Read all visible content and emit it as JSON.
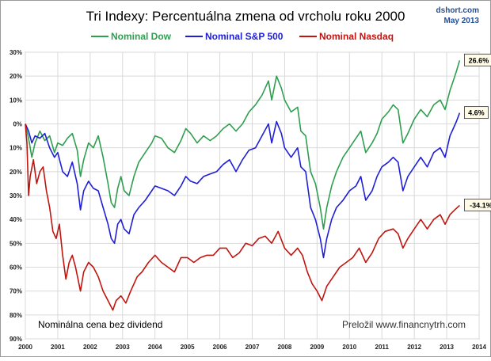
{
  "chart_data": {
    "type": "line",
    "title": "Tri Indexy: Percentuálna zmena od vrcholu roku 2000",
    "source": "dshort.com",
    "date": "May 2013",
    "note_left": "Nominálna cena bez dividend",
    "note_right": "Preložil  www.financnytrh.com",
    "x_ticks": [
      "2000",
      "2001",
      "2002",
      "2003",
      "2004",
      "2005",
      "2006",
      "2007",
      "2008",
      "2009",
      "2010",
      "2011",
      "2012",
      "2013",
      "2014"
    ],
    "y_ticks": [
      {
        "value": 30,
        "label": "30%"
      },
      {
        "value": 20,
        "label": "20%"
      },
      {
        "value": 10,
        "label": "10%"
      },
      {
        "value": 0,
        "label": "0%"
      },
      {
        "value": -10,
        "label": "10%"
      },
      {
        "value": -20,
        "label": "20%"
      },
      {
        "value": -30,
        "label": "30%"
      },
      {
        "value": -40,
        "label": "40%"
      },
      {
        "value": -50,
        "label": "50%"
      },
      {
        "value": -60,
        "label": "60%"
      },
      {
        "value": -70,
        "label": "70%"
      },
      {
        "value": -80,
        "label": "80%"
      },
      {
        "value": -90,
        "label": "90%"
      }
    ],
    "xlim": [
      2000,
      2014
    ],
    "ylim": [
      -90,
      30
    ],
    "grid": true,
    "legend_position": "top",
    "series": [
      {
        "name": "Nominal Dow",
        "color": "#2e9e4f",
        "end_label": "26.6%",
        "points": [
          [
            2000.0,
            0
          ],
          [
            2000.1,
            -6
          ],
          [
            2000.2,
            -14
          ],
          [
            2000.3,
            -8
          ],
          [
            2000.45,
            -3
          ],
          [
            2000.6,
            -7
          ],
          [
            2000.75,
            -5
          ],
          [
            2000.9,
            -12
          ],
          [
            2001.0,
            -8
          ],
          [
            2001.15,
            -9
          ],
          [
            2001.3,
            -6
          ],
          [
            2001.45,
            -4
          ],
          [
            2001.6,
            -11
          ],
          [
            2001.7,
            -22
          ],
          [
            2001.8,
            -15
          ],
          [
            2001.95,
            -8
          ],
          [
            2002.1,
            -10
          ],
          [
            2002.25,
            -5
          ],
          [
            2002.4,
            -14
          ],
          [
            2002.55,
            -25
          ],
          [
            2002.65,
            -33
          ],
          [
            2002.75,
            -35
          ],
          [
            2002.85,
            -27
          ],
          [
            2002.95,
            -22
          ],
          [
            2003.05,
            -28
          ],
          [
            2003.2,
            -30
          ],
          [
            2003.35,
            -22
          ],
          [
            2003.5,
            -16
          ],
          [
            2003.7,
            -12
          ],
          [
            2003.9,
            -8
          ],
          [
            2004.0,
            -5
          ],
          [
            2004.2,
            -6
          ],
          [
            2004.4,
            -10
          ],
          [
            2004.6,
            -12
          ],
          [
            2004.8,
            -7
          ],
          [
            2004.95,
            -2
          ],
          [
            2005.1,
            -4
          ],
          [
            2005.3,
            -8
          ],
          [
            2005.5,
            -5
          ],
          [
            2005.7,
            -7
          ],
          [
            2005.9,
            -5
          ],
          [
            2006.1,
            -2
          ],
          [
            2006.3,
            0
          ],
          [
            2006.5,
            -3
          ],
          [
            2006.7,
            0
          ],
          [
            2006.9,
            5
          ],
          [
            2007.1,
            8
          ],
          [
            2007.3,
            12
          ],
          [
            2007.5,
            18
          ],
          [
            2007.6,
            10
          ],
          [
            2007.75,
            20
          ],
          [
            2007.9,
            15
          ],
          [
            2008.0,
            10
          ],
          [
            2008.2,
            5
          ],
          [
            2008.4,
            7
          ],
          [
            2008.5,
            -3
          ],
          [
            2008.65,
            -5
          ],
          [
            2008.8,
            -20
          ],
          [
            2008.95,
            -25
          ],
          [
            2009.1,
            -35
          ],
          [
            2009.2,
            -44
          ],
          [
            2009.3,
            -35
          ],
          [
            2009.45,
            -26
          ],
          [
            2009.6,
            -20
          ],
          [
            2009.8,
            -14
          ],
          [
            2010.0,
            -10
          ],
          [
            2010.2,
            -6
          ],
          [
            2010.35,
            -3
          ],
          [
            2010.5,
            -12
          ],
          [
            2010.7,
            -8
          ],
          [
            2010.85,
            -4
          ],
          [
            2011.0,
            2
          ],
          [
            2011.2,
            5
          ],
          [
            2011.35,
            8
          ],
          [
            2011.5,
            6
          ],
          [
            2011.65,
            -8
          ],
          [
            2011.8,
            -4
          ],
          [
            2012.0,
            2
          ],
          [
            2012.2,
            6
          ],
          [
            2012.4,
            3
          ],
          [
            2012.6,
            8
          ],
          [
            2012.8,
            10
          ],
          [
            2012.95,
            6
          ],
          [
            2013.1,
            14
          ],
          [
            2013.2,
            18
          ],
          [
            2013.3,
            22
          ],
          [
            2013.4,
            26.6
          ]
        ]
      },
      {
        "name": "Nominal S&P 500",
        "color": "#1f1fd6",
        "end_label": "4.6%",
        "points": [
          [
            2000.0,
            0
          ],
          [
            2000.1,
            -3
          ],
          [
            2000.2,
            -8
          ],
          [
            2000.3,
            -5
          ],
          [
            2000.45,
            -6
          ],
          [
            2000.6,
            -4
          ],
          [
            2000.75,
            -10
          ],
          [
            2000.9,
            -14
          ],
          [
            2001.0,
            -12
          ],
          [
            2001.15,
            -20
          ],
          [
            2001.3,
            -22
          ],
          [
            2001.45,
            -16
          ],
          [
            2001.6,
            -25
          ],
          [
            2001.7,
            -36
          ],
          [
            2001.8,
            -28
          ],
          [
            2001.95,
            -24
          ],
          [
            2002.1,
            -27
          ],
          [
            2002.25,
            -28
          ],
          [
            2002.4,
            -35
          ],
          [
            2002.55,
            -42
          ],
          [
            2002.65,
            -48
          ],
          [
            2002.75,
            -50
          ],
          [
            2002.85,
            -42
          ],
          [
            2002.95,
            -40
          ],
          [
            2003.05,
            -44
          ],
          [
            2003.2,
            -46
          ],
          [
            2003.35,
            -38
          ],
          [
            2003.5,
            -35
          ],
          [
            2003.7,
            -32
          ],
          [
            2003.9,
            -28
          ],
          [
            2004.0,
            -26
          ],
          [
            2004.2,
            -27
          ],
          [
            2004.4,
            -28
          ],
          [
            2004.6,
            -30
          ],
          [
            2004.8,
            -26
          ],
          [
            2004.95,
            -22
          ],
          [
            2005.1,
            -24
          ],
          [
            2005.3,
            -25
          ],
          [
            2005.5,
            -22
          ],
          [
            2005.7,
            -21
          ],
          [
            2005.9,
            -20
          ],
          [
            2006.1,
            -17
          ],
          [
            2006.3,
            -15
          ],
          [
            2006.5,
            -20
          ],
          [
            2006.7,
            -15
          ],
          [
            2006.9,
            -11
          ],
          [
            2007.1,
            -10
          ],
          [
            2007.3,
            -5
          ],
          [
            2007.5,
            0
          ],
          [
            2007.6,
            -8
          ],
          [
            2007.75,
            1
          ],
          [
            2007.9,
            -4
          ],
          [
            2008.0,
            -10
          ],
          [
            2008.2,
            -14
          ],
          [
            2008.4,
            -10
          ],
          [
            2008.5,
            -18
          ],
          [
            2008.65,
            -20
          ],
          [
            2008.8,
            -35
          ],
          [
            2008.95,
            -40
          ],
          [
            2009.1,
            -48
          ],
          [
            2009.2,
            -56
          ],
          [
            2009.3,
            -48
          ],
          [
            2009.45,
            -40
          ],
          [
            2009.6,
            -35
          ],
          [
            2009.8,
            -32
          ],
          [
            2010.0,
            -28
          ],
          [
            2010.2,
            -26
          ],
          [
            2010.35,
            -22
          ],
          [
            2010.5,
            -32
          ],
          [
            2010.7,
            -28
          ],
          [
            2010.85,
            -22
          ],
          [
            2011.0,
            -18
          ],
          [
            2011.2,
            -16
          ],
          [
            2011.35,
            -14
          ],
          [
            2011.5,
            -16
          ],
          [
            2011.65,
            -28
          ],
          [
            2011.8,
            -22
          ],
          [
            2012.0,
            -18
          ],
          [
            2012.2,
            -14
          ],
          [
            2012.4,
            -18
          ],
          [
            2012.6,
            -12
          ],
          [
            2012.8,
            -10
          ],
          [
            2012.95,
            -14
          ],
          [
            2013.1,
            -5
          ],
          [
            2013.2,
            -2
          ],
          [
            2013.3,
            1
          ],
          [
            2013.4,
            4.6
          ]
        ]
      },
      {
        "name": "Nominal Nasdaq",
        "color": "#c0150f",
        "end_label": "-34.1%",
        "points": [
          [
            2000.0,
            0
          ],
          [
            2000.05,
            -8
          ],
          [
            2000.1,
            -30
          ],
          [
            2000.15,
            -22
          ],
          [
            2000.25,
            -15
          ],
          [
            2000.35,
            -25
          ],
          [
            2000.45,
            -20
          ],
          [
            2000.55,
            -18
          ],
          [
            2000.65,
            -28
          ],
          [
            2000.75,
            -35
          ],
          [
            2000.85,
            -45
          ],
          [
            2000.95,
            -48
          ],
          [
            2001.05,
            -42
          ],
          [
            2001.15,
            -55
          ],
          [
            2001.25,
            -65
          ],
          [
            2001.35,
            -58
          ],
          [
            2001.45,
            -55
          ],
          [
            2001.55,
            -60
          ],
          [
            2001.7,
            -70
          ],
          [
            2001.8,
            -62
          ],
          [
            2001.95,
            -58
          ],
          [
            2002.1,
            -60
          ],
          [
            2002.25,
            -64
          ],
          [
            2002.4,
            -70
          ],
          [
            2002.55,
            -74
          ],
          [
            2002.7,
            -78
          ],
          [
            2002.8,
            -74
          ],
          [
            2002.95,
            -72
          ],
          [
            2003.1,
            -75
          ],
          [
            2003.25,
            -70
          ],
          [
            2003.45,
            -64
          ],
          [
            2003.6,
            -62
          ],
          [
            2003.8,
            -58
          ],
          [
            2004.0,
            -55
          ],
          [
            2004.2,
            -58
          ],
          [
            2004.4,
            -60
          ],
          [
            2004.6,
            -62
          ],
          [
            2004.8,
            -56
          ],
          [
            2005.0,
            -56
          ],
          [
            2005.2,
            -58
          ],
          [
            2005.4,
            -56
          ],
          [
            2005.6,
            -55
          ],
          [
            2005.8,
            -55
          ],
          [
            2006.0,
            -52
          ],
          [
            2006.2,
            -52
          ],
          [
            2006.4,
            -56
          ],
          [
            2006.6,
            -54
          ],
          [
            2006.8,
            -50
          ],
          [
            2007.0,
            -51
          ],
          [
            2007.2,
            -48
          ],
          [
            2007.4,
            -47
          ],
          [
            2007.6,
            -50
          ],
          [
            2007.8,
            -45
          ],
          [
            2008.0,
            -52
          ],
          [
            2008.2,
            -55
          ],
          [
            2008.4,
            -52
          ],
          [
            2008.55,
            -55
          ],
          [
            2008.7,
            -62
          ],
          [
            2008.85,
            -67
          ],
          [
            2009.0,
            -70
          ],
          [
            2009.15,
            -74
          ],
          [
            2009.3,
            -68
          ],
          [
            2009.5,
            -64
          ],
          [
            2009.7,
            -60
          ],
          [
            2009.9,
            -58
          ],
          [
            2010.1,
            -56
          ],
          [
            2010.3,
            -52
          ],
          [
            2010.5,
            -58
          ],
          [
            2010.7,
            -54
          ],
          [
            2010.9,
            -48
          ],
          [
            2011.1,
            -45
          ],
          [
            2011.35,
            -44
          ],
          [
            2011.5,
            -46
          ],
          [
            2011.65,
            -52
          ],
          [
            2011.8,
            -48
          ],
          [
            2012.0,
            -44
          ],
          [
            2012.2,
            -40
          ],
          [
            2012.4,
            -44
          ],
          [
            2012.6,
            -40
          ],
          [
            2012.8,
            -38
          ],
          [
            2012.95,
            -42
          ],
          [
            2013.1,
            -38
          ],
          [
            2013.25,
            -36
          ],
          [
            2013.4,
            -34.1
          ]
        ]
      }
    ]
  }
}
